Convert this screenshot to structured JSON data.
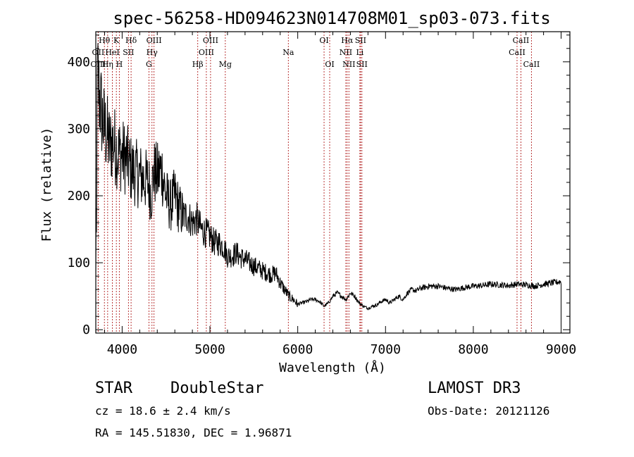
{
  "chart_data": {
    "type": "line",
    "title": "spec-56258-HD094623N014708M01_sp03-073.fits",
    "xlabel": "Wavelength (Å)",
    "ylabel": "Flux (relative)",
    "xlim": [
      3700,
      9100
    ],
    "ylim": [
      -5,
      445
    ],
    "xticks": [
      4000,
      5000,
      6000,
      7000,
      8000,
      9000
    ],
    "yticks": [
      0,
      100,
      200,
      300,
      400
    ],
    "series": [
      {
        "name": "spectrum",
        "x": [
          3700,
          3720,
          3740,
          3760,
          3780,
          3800,
          3830,
          3860,
          3900,
          3950,
          4000,
          4050,
          4100,
          4150,
          4200,
          4250,
          4300,
          4330,
          4360,
          4400,
          4450,
          4500,
          4550,
          4600,
          4650,
          4700,
          4750,
          4800,
          4850,
          4900,
          4950,
          5000,
          5050,
          5100,
          5150,
          5200,
          5250,
          5300,
          5350,
          5400,
          5450,
          5500,
          5550,
          5600,
          5650,
          5700,
          5750,
          5800,
          5850,
          5900,
          5950,
          6000,
          6050,
          6100,
          6150,
          6200,
          6250,
          6300,
          6350,
          6400,
          6450,
          6500,
          6550,
          6600,
          6650,
          6700,
          6750,
          6800,
          6850,
          6900,
          6950,
          7000,
          7050,
          7100,
          7150,
          7200,
          7250,
          7300,
          7350,
          7400,
          7500,
          7600,
          7700,
          7800,
          7900,
          8000,
          8100,
          8200,
          8300,
          8400,
          8500,
          8600,
          8700,
          8800,
          8900,
          9000
        ],
        "y": [
          170,
          380,
          350,
          330,
          310,
          300,
          290,
          275,
          280,
          265,
          260,
          255,
          240,
          235,
          230,
          225,
          220,
          200,
          235,
          230,
          240,
          200,
          185,
          200,
          180,
          170,
          170,
          160,
          165,
          150,
          145,
          140,
          130,
          130,
          125,
          110,
          110,
          115,
          108,
          105,
          100,
          95,
          92,
          88,
          85,
          82,
          85,
          70,
          60,
          50,
          45,
          38,
          40,
          42,
          45,
          45,
          42,
          35,
          40,
          50,
          55,
          50,
          45,
          55,
          50,
          40,
          35,
          32,
          35,
          37,
          42,
          45,
          40,
          45,
          50,
          45,
          55,
          60,
          58,
          62,
          65,
          65,
          62,
          60,
          63,
          65,
          66,
          68,
          67,
          66,
          68,
          67,
          65,
          68,
          70,
          72
        ]
      }
    ],
    "lines": [
      {
        "label": "Hθ",
        "wave": 3798,
        "row": 1
      },
      {
        "label": "K",
        "wave": 3934,
        "row": 1
      },
      {
        "label": "Hδ",
        "wave": 4102,
        "row": 1
      },
      {
        "label": "OIII",
        "wave": 4363,
        "row": 1
      },
      {
        "label": "OIII",
        "wave": 5007,
        "row": 1
      },
      {
        "label": "OI",
        "wave": 6300,
        "row": 1
      },
      {
        "label": "Hα",
        "wave": 6563,
        "row": 1
      },
      {
        "label": "SII",
        "wave": 6716,
        "row": 1
      },
      {
        "label": "CaII",
        "wave": 8542,
        "row": 1
      },
      {
        "label": "OII",
        "wave": 3727,
        "row": 2
      },
      {
        "label": "HeI",
        "wave": 3889,
        "row": 2
      },
      {
        "label": "SII",
        "wave": 4072,
        "row": 2
      },
      {
        "label": "Hγ",
        "wave": 4340,
        "row": 2
      },
      {
        "label": "OIII",
        "wave": 4959,
        "row": 2
      },
      {
        "label": "Na",
        "wave": 5893,
        "row": 2
      },
      {
        "label": "NII",
        "wave": 6548,
        "row": 2
      },
      {
        "label": "Li",
        "wave": 6708,
        "row": 2
      },
      {
        "label": "CaII",
        "wave": 8498,
        "row": 2
      },
      {
        "label": "OIII",
        "wave": 3727,
        "row": 3
      },
      {
        "label": "Hη",
        "wave": 3835,
        "row": 3
      },
      {
        "label": "H",
        "wave": 3968,
        "row": 3
      },
      {
        "label": "G",
        "wave": 4305,
        "row": 3
      },
      {
        "label": "Hβ",
        "wave": 4861,
        "row": 3
      },
      {
        "label": "Mg",
        "wave": 5175,
        "row": 3
      },
      {
        "label": "OI",
        "wave": 6364,
        "row": 3
      },
      {
        "label": "NII",
        "wave": 6583,
        "row": 3
      },
      {
        "label": "SII",
        "wave": 6731,
        "row": 3
      },
      {
        "label": "CaII",
        "wave": 8662,
        "row": 3
      }
    ],
    "line_color": "#b22222"
  },
  "info": {
    "class": "STAR",
    "subclass": "DoubleStar",
    "survey": "LAMOST DR3",
    "cz": "cz = 18.6 ± 2.4 km/s",
    "obs_date": "Obs-Date: 20121126",
    "radec": "RA = 145.51830, DEC =    1.96871"
  }
}
